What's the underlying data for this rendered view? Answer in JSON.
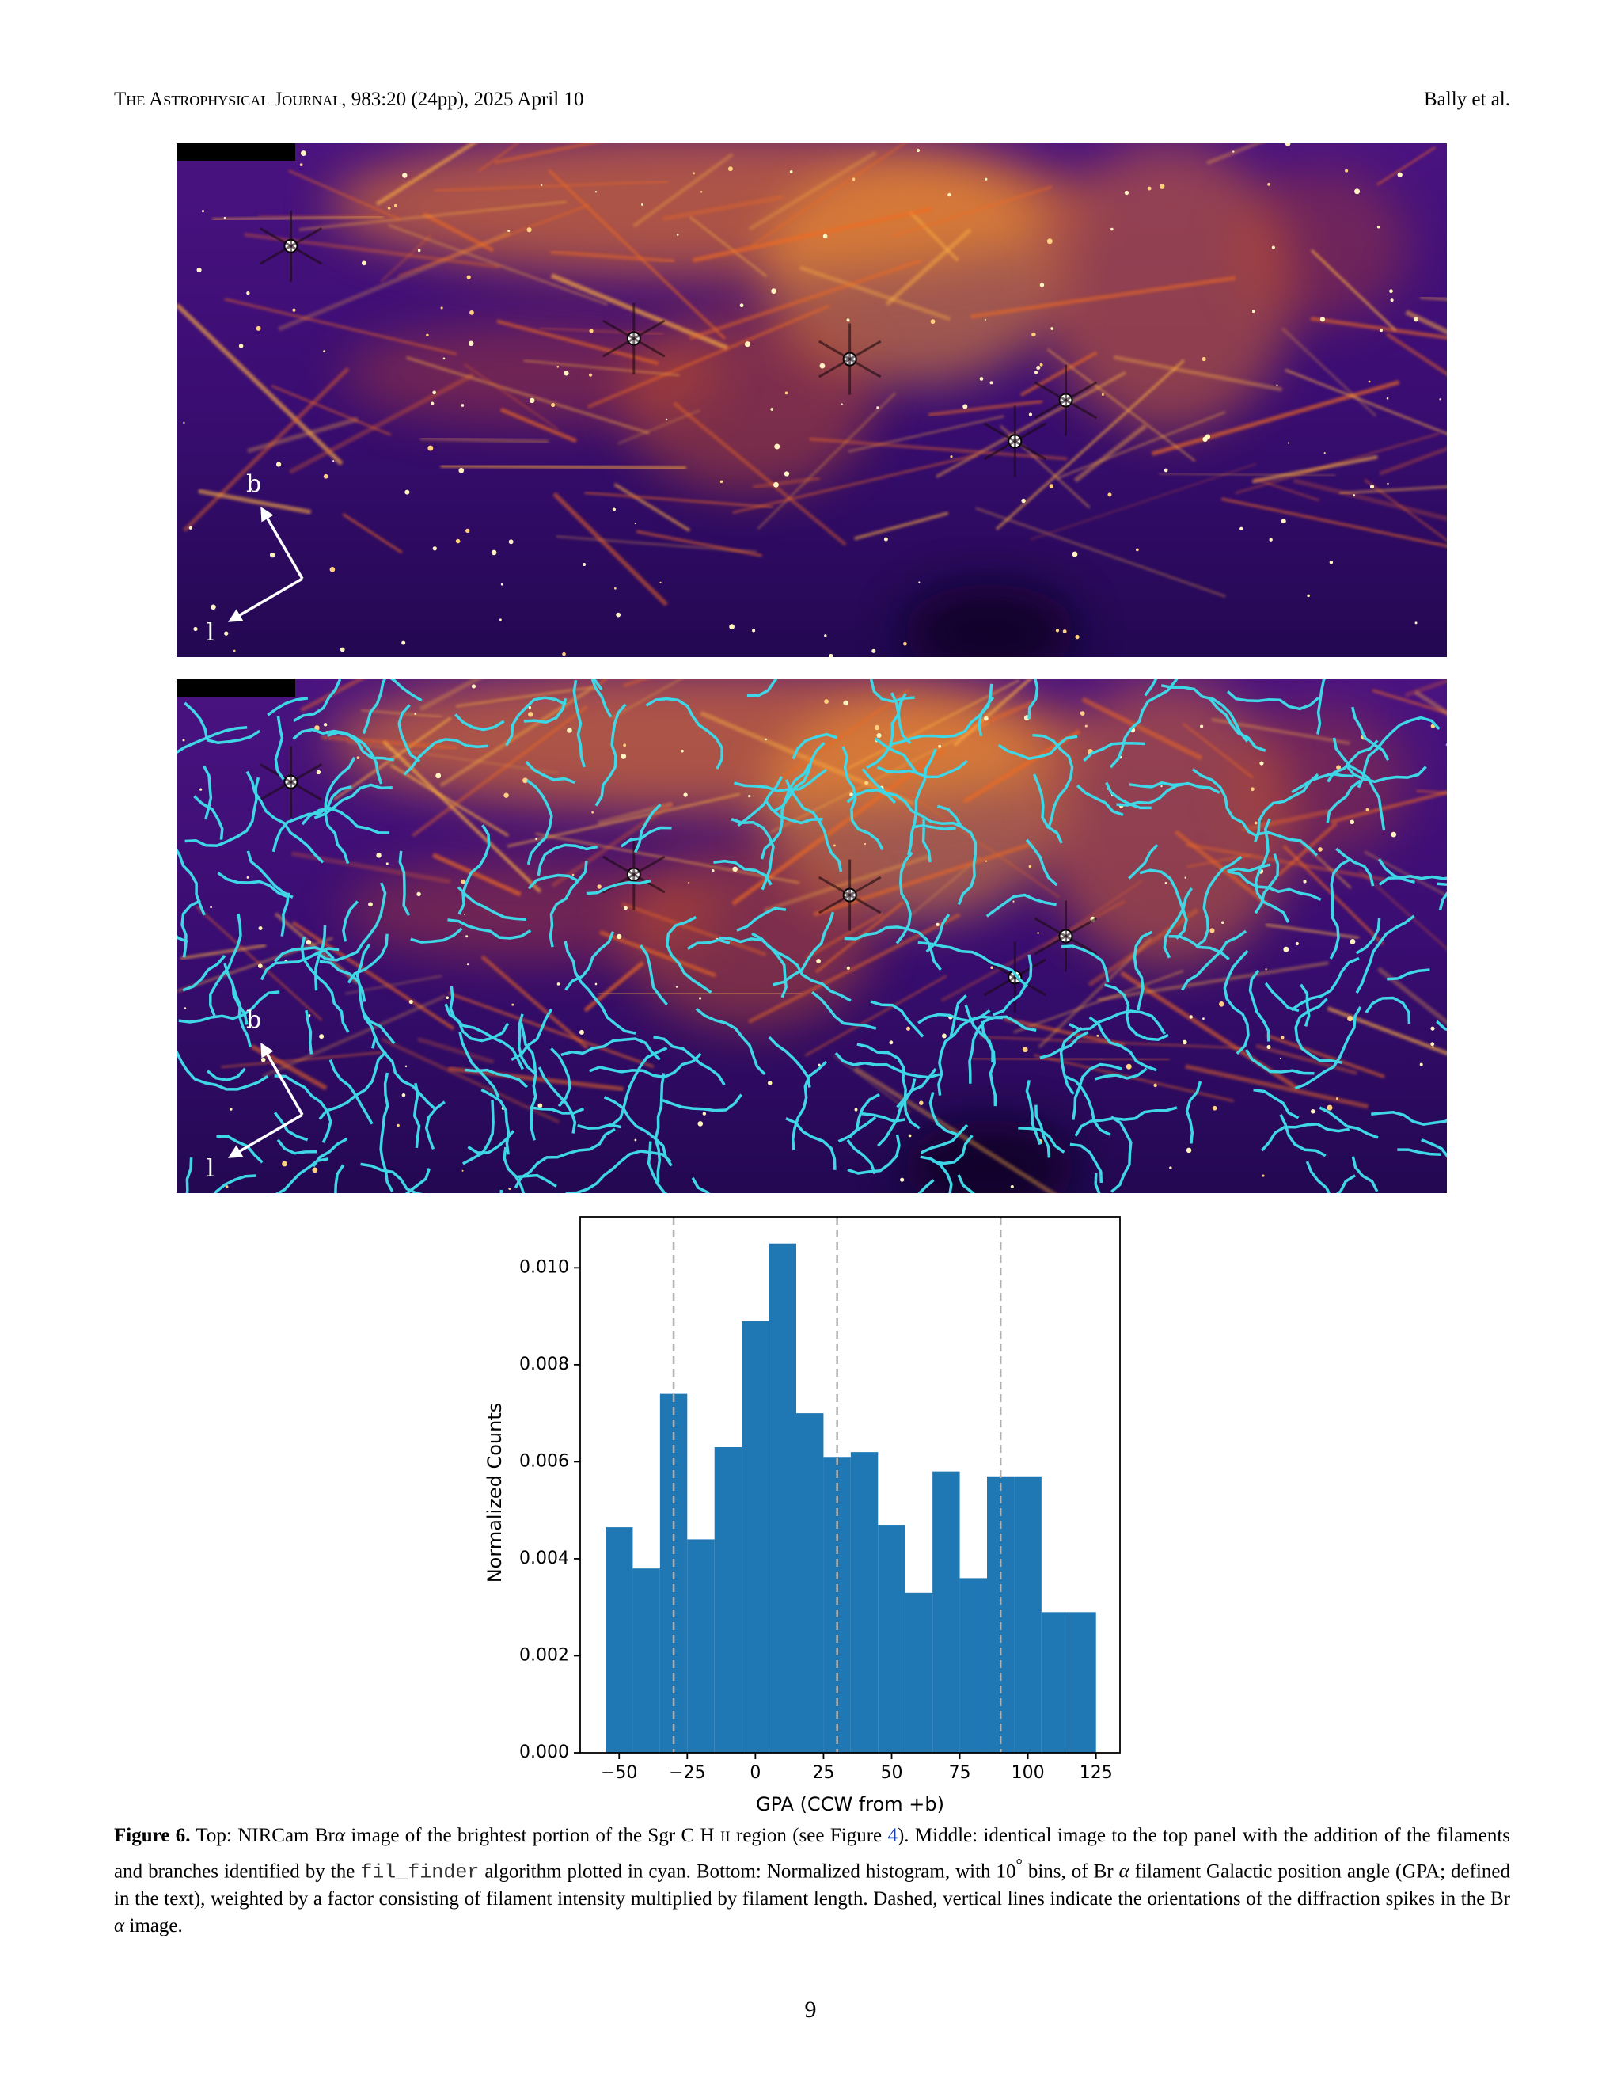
{
  "header": {
    "journal": "The Astrophysical Journal",
    "citation": ", 983:20 (24pp), 2025 April 10",
    "authors": "Bally et al."
  },
  "figure": {
    "top_image": {
      "labels": [
        "b",
        "l"
      ]
    },
    "middle_image": {
      "labels": [
        "b",
        "l"
      ]
    }
  },
  "chart_data": {
    "type": "histogram",
    "xlabel": "GPA (CCW from +b)",
    "ylabel": "Normalized Counts",
    "bins": [
      -55,
      -45,
      -35,
      -25,
      -15,
      -5,
      5,
      15,
      25,
      35,
      45,
      55,
      65,
      75,
      85,
      95,
      105,
      115,
      125
    ],
    "values": [
      0.00465,
      0.0038,
      0.0074,
      0.0044,
      0.0063,
      0.0089,
      0.0105,
      0.007,
      0.0061,
      0.0062,
      0.0047,
      0.0033,
      0.0058,
      0.0036,
      0.0057,
      0.0057,
      0.0029,
      0.0029
    ],
    "color": "#1f77b4",
    "vlines": [
      -30,
      30,
      90
    ],
    "vline_color": "#b0b0b0",
    "xlim": [
      -64.3,
      133.8
    ],
    "ylim": [
      0,
      0.01105
    ],
    "xticks": [
      {
        "value": -50,
        "label": "−50"
      },
      {
        "value": -25,
        "label": "−25"
      },
      0,
      25,
      50,
      75,
      100,
      125
    ],
    "yticks": [
      {
        "value": 0,
        "label": "0.000"
      },
      {
        "value": 0.002,
        "label": "0.002"
      },
      {
        "value": 0.004,
        "label": "0.004"
      },
      {
        "value": 0.006,
        "label": "0.006"
      },
      {
        "value": 0.008,
        "label": "0.008"
      },
      {
        "value": 0.01,
        "label": "0.010"
      }
    ]
  },
  "caption": [
    "Figure 6.",
    " Top: NIRCam Br",
    "α",
    " image of the brightest portion of the Sgr C H ",
    "II",
    " region (see Figure ",
    "4",
    "). Middle: identical image to the top panel with the addition of the filaments and branches identified by the ",
    "fil_finder",
    " algorithm plotted in cyan. Bottom: Normalized histogram, with 10",
    "°",
    " bins, of Br ",
    "α",
    " filament Galactic position angle (GPA; defined in the text), weighted by a factor consisting of filament intensity multiplied by filament length. Dashed, vertical lines indicate the orientations of the diffraction spikes in the Br ",
    "α",
    " image."
  ],
  "page_number": "9"
}
